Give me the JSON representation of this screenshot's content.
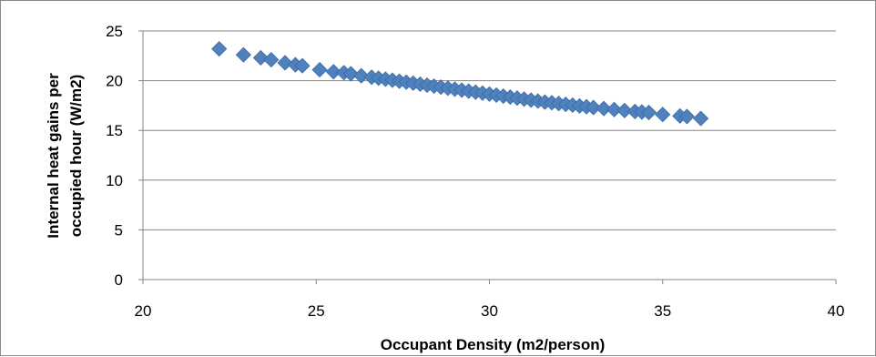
{
  "chart_data": {
    "type": "scatter",
    "title": "",
    "xlabel": "Occupant Density (m2/person)",
    "ylabel_lines": [
      "Internal heat gains per",
      "occupied hour (W/m2)"
    ],
    "xlim": [
      20,
      40
    ],
    "ylim": [
      0,
      25
    ],
    "x_ticks": [
      20,
      25,
      30,
      35,
      40
    ],
    "y_ticks": [
      0,
      5,
      10,
      15,
      20,
      25
    ],
    "grid": "horizontal",
    "legend": "none",
    "marker": "diamond",
    "colors": {
      "marker": "#4f81bd",
      "marker_edge": "#3a6aa8",
      "grid": "#868686",
      "axis": "#868686"
    },
    "series": [
      {
        "x": [
          22.2,
          22.9,
          23.4,
          23.7,
          24.1,
          24.4,
          24.6,
          25.1,
          25.5,
          25.8,
          26.0,
          26.3,
          26.6,
          26.8,
          27.0,
          27.2,
          27.4,
          27.6,
          27.8,
          28.0,
          28.2,
          28.4,
          28.6,
          28.8,
          29.0,
          29.2,
          29.4,
          29.6,
          29.8,
          30.0,
          30.2,
          30.4,
          30.6,
          30.8,
          31.0,
          31.2,
          31.4,
          31.6,
          31.8,
          32.0,
          32.2,
          32.4,
          32.6,
          32.8,
          33.0,
          33.3,
          33.6,
          33.9,
          34.2,
          34.4,
          34.6,
          35.0,
          35.5,
          35.7,
          36.1
        ],
        "y": [
          23.2,
          22.6,
          22.3,
          22.1,
          21.8,
          21.6,
          21.5,
          21.1,
          20.9,
          20.8,
          20.7,
          20.5,
          20.35,
          20.25,
          20.15,
          20.05,
          19.95,
          19.85,
          19.75,
          19.65,
          19.55,
          19.45,
          19.35,
          19.25,
          19.15,
          19.05,
          18.95,
          18.85,
          18.75,
          18.65,
          18.55,
          18.45,
          18.35,
          18.25,
          18.15,
          18.05,
          17.95,
          17.85,
          17.78,
          17.7,
          17.62,
          17.54,
          17.46,
          17.38,
          17.3,
          17.2,
          17.1,
          17.0,
          16.9,
          16.85,
          16.8,
          16.6,
          16.45,
          16.4,
          16.2
        ]
      }
    ]
  }
}
